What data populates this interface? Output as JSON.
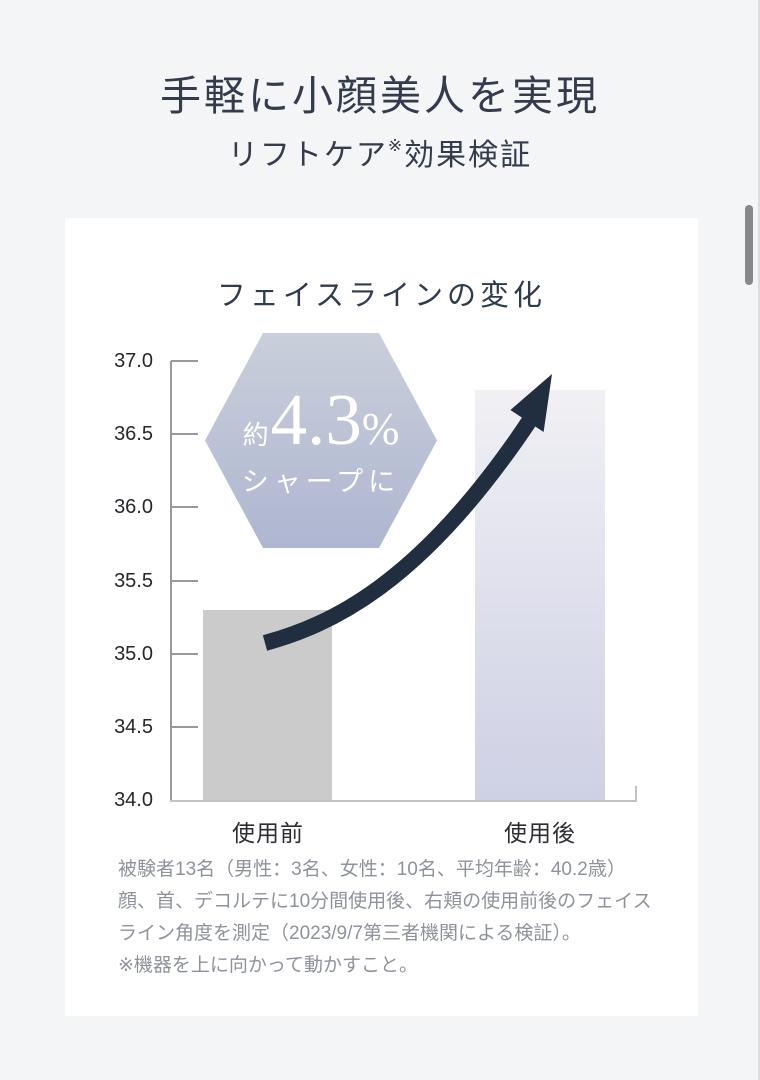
{
  "page": {
    "title": "手軽に小顔美人を実現",
    "subtitle": {
      "prefix": "リフトケア",
      "ref_mark": "※",
      "suffix": "効果検証"
    }
  },
  "chart_data": {
    "type": "bar",
    "title": "フェイスラインの変化",
    "categories": [
      "使用前",
      "使用後"
    ],
    "values": [
      35.3,
      36.8
    ],
    "ylim": [
      34.0,
      37.0
    ],
    "y_tick_labels": [
      "37.0",
      "36.5",
      "36.0",
      "35.5",
      "35.0",
      "34.5",
      "34.0"
    ],
    "xlabel": "",
    "ylabel": "",
    "grid": false,
    "annotation": {
      "shape": "hexagon-badge",
      "prefix": "約",
      "value": "4.3",
      "unit": "%",
      "caption": "シャープに"
    },
    "arrow": {
      "style": "curved-up-arrow",
      "meaning": "increase from before to after"
    }
  },
  "footnote": {
    "lines": [
      "被験者13名（男性：3名、女性：10名、平均年齢：40.2歳）",
      "顔、首、デコルテに10分間使用後、右頬の使用前後のフェイス",
      "ライン角度を測定（2023/9/7第三者機関による検証）。",
      "※機器を上に向かって動かすこと。"
    ]
  },
  "colors": {
    "page_bg": "#f4f5f7",
    "card_bg": "#ffffff",
    "title_text": "#333b4d",
    "arrow": "#212e3f",
    "hexagon_top": "#c9cfda",
    "hexagon_bottom": "#aeb6d1",
    "bar_before": "#cbcbcc",
    "bar_after_top": "#f0f0f4",
    "bar_after_bottom": "#ced0e4",
    "axis_line": "#97999d",
    "baseline": "#c2c3c6"
  }
}
